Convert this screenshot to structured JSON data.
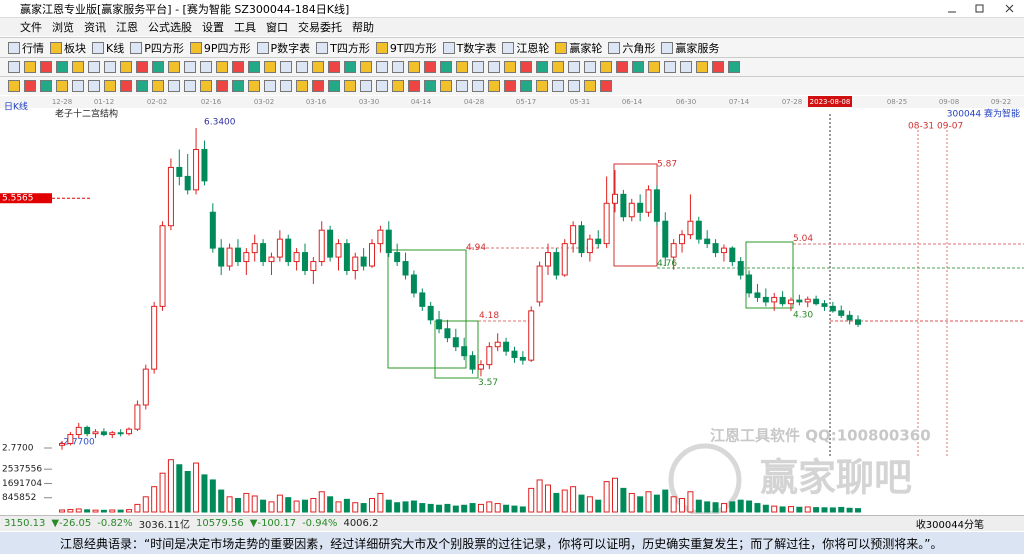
{
  "title_bar": {
    "title": "赢家江恩专业版[赢家服务平台] - [赛为智能 SZ300044-184日K线]"
  },
  "menu": [
    "文件",
    "浏览",
    "资讯",
    "江恩",
    "公式选股",
    "设置",
    "工具",
    "窗口",
    "交易委托",
    "帮助"
  ],
  "toolbar": [
    "行情",
    "板块",
    "K线",
    "P四方形",
    "9P四方形",
    "P数字表",
    "T四方形",
    "9T四方形",
    "T数字表",
    "江恩轮",
    "赢家轮",
    "六角形",
    "赢家服务"
  ],
  "chart": {
    "type": "candlestick",
    "period_label": "日K线",
    "indicator_title": "老子十二宫结构",
    "stock_label": "300044 赛为智能",
    "date_labels": [
      "12-28",
      "01-12",
      "02-02",
      "02-16",
      "03-02",
      "03-16",
      "03-30",
      "04-14",
      "04-28",
      "05-17",
      "05-31",
      "06-14",
      "06-30",
      "07-14",
      "07-28",
      "2023-08-08",
      "08-25",
      "09-08",
      "09-22"
    ],
    "future_dates": "08-31 09-07",
    "ylim": [
      2.77,
      6.34
    ],
    "yticks": [
      {
        "value": 5.5565,
        "label": "5.5565"
      },
      {
        "value": 2.77,
        "label": "2.7700"
      }
    ],
    "annotations": [
      {
        "value": 6.34,
        "label": "6.3400"
      },
      {
        "value": 5.87,
        "label": "5.87"
      },
      {
        "value": 4.94,
        "label": "4.94"
      },
      {
        "value": 5.04,
        "label": "5.04"
      },
      {
        "value": 4.76,
        "label": "4.76"
      },
      {
        "value": 4.18,
        "label": "4.18"
      },
      {
        "value": 4.3,
        "label": "4.30"
      },
      {
        "value": 3.57,
        "label": "3.57"
      },
      {
        "value": 2.77,
        "label": "-2.7700"
      }
    ],
    "candles": [
      [
        2.8,
        2.85,
        2.75,
        2.82
      ],
      [
        2.82,
        2.95,
        2.8,
        2.92
      ],
      [
        2.92,
        3.05,
        2.88,
        3.0
      ],
      [
        3.0,
        3.02,
        2.9,
        2.93
      ],
      [
        2.93,
        2.98,
        2.88,
        2.95
      ],
      [
        2.95,
        2.99,
        2.9,
        2.92
      ],
      [
        2.92,
        2.96,
        2.88,
        2.94
      ],
      [
        2.94,
        2.98,
        2.9,
        2.93
      ],
      [
        2.93,
        3.0,
        2.91,
        2.98
      ],
      [
        2.98,
        3.3,
        2.96,
        3.25
      ],
      [
        3.25,
        3.7,
        3.2,
        3.65
      ],
      [
        3.65,
        4.4,
        3.6,
        4.35
      ],
      [
        4.35,
        5.3,
        4.3,
        5.25
      ],
      [
        5.25,
        6.0,
        5.2,
        5.9
      ],
      [
        5.9,
        6.1,
        5.7,
        5.8
      ],
      [
        5.8,
        6.05,
        5.6,
        5.65
      ],
      [
        5.65,
        6.34,
        5.6,
        6.1
      ],
      [
        6.1,
        6.2,
        5.7,
        5.75
      ],
      [
        5.4,
        5.5,
        4.95,
        5.0
      ],
      [
        5.0,
        5.1,
        4.7,
        4.8
      ],
      [
        4.8,
        5.05,
        4.75,
        5.0
      ],
      [
        5.0,
        5.1,
        4.8,
        4.85
      ],
      [
        4.85,
        5.0,
        4.7,
        4.95
      ],
      [
        4.95,
        5.15,
        4.85,
        5.05
      ],
      [
        5.05,
        5.1,
        4.8,
        4.85
      ],
      [
        4.85,
        4.95,
        4.7,
        4.9
      ],
      [
        4.9,
        5.2,
        4.85,
        5.1
      ],
      [
        5.1,
        5.15,
        4.8,
        4.85
      ],
      [
        4.85,
        5.0,
        4.75,
        4.95
      ],
      [
        4.95,
        5.05,
        4.7,
        4.75
      ],
      [
        4.75,
        4.9,
        4.6,
        4.85
      ],
      [
        4.85,
        5.3,
        4.8,
        5.2
      ],
      [
        5.2,
        5.25,
        4.85,
        4.9
      ],
      [
        4.9,
        5.1,
        4.75,
        5.05
      ],
      [
        5.05,
        5.1,
        4.7,
        4.75
      ],
      [
        4.75,
        4.95,
        4.65,
        4.9
      ],
      [
        4.9,
        5.0,
        4.75,
        4.8
      ],
      [
        4.8,
        5.1,
        4.78,
        5.05
      ],
      [
        5.05,
        5.25,
        4.95,
        5.2
      ],
      [
        5.2,
        5.3,
        4.9,
        4.95
      ],
      [
        4.95,
        5.05,
        4.8,
        4.85
      ],
      [
        4.85,
        4.95,
        4.65,
        4.7
      ],
      [
        4.7,
        4.75,
        4.45,
        4.5
      ],
      [
        4.5,
        4.55,
        4.3,
        4.35
      ],
      [
        4.35,
        4.4,
        4.15,
        4.2
      ],
      [
        4.2,
        4.3,
        4.05,
        4.1
      ],
      [
        4.1,
        4.2,
        3.95,
        4.0
      ],
      [
        4.0,
        4.1,
        3.85,
        3.9
      ],
      [
        3.9,
        4.0,
        3.75,
        3.8
      ],
      [
        3.8,
        3.85,
        3.6,
        3.65
      ],
      [
        3.65,
        3.75,
        3.57,
        3.7
      ],
      [
        3.7,
        3.95,
        3.65,
        3.9
      ],
      [
        3.9,
        4.05,
        3.85,
        3.95
      ],
      [
        3.95,
        4.0,
        3.8,
        3.85
      ],
      [
        3.85,
        3.9,
        3.72,
        3.78
      ],
      [
        3.78,
        3.85,
        3.7,
        3.75
      ],
      [
        3.75,
        4.35,
        3.73,
        4.3
      ],
      [
        4.4,
        4.85,
        4.35,
        4.8
      ],
      [
        4.8,
        5.05,
        4.7,
        4.95
      ],
      [
        4.95,
        5.0,
        4.65,
        4.7
      ],
      [
        4.7,
        5.1,
        4.68,
        5.05
      ],
      [
        5.05,
        5.3,
        4.95,
        5.25
      ],
      [
        5.25,
        5.3,
        4.9,
        4.95
      ],
      [
        4.95,
        5.15,
        4.85,
        5.1
      ],
      [
        5.1,
        5.2,
        5.0,
        5.05
      ],
      [
        5.05,
        5.8,
        5.0,
        5.5
      ],
      [
        5.5,
        5.87,
        5.4,
        5.6
      ],
      [
        5.6,
        5.65,
        5.3,
        5.35
      ],
      [
        5.35,
        5.55,
        5.3,
        5.5
      ],
      [
        5.5,
        5.6,
        5.3,
        5.4
      ],
      [
        5.4,
        5.7,
        5.35,
        5.65
      ],
      [
        5.65,
        5.7,
        5.25,
        5.3
      ],
      [
        5.3,
        5.4,
        4.8,
        4.9
      ],
      [
        4.9,
        5.1,
        4.76,
        5.05
      ],
      [
        5.05,
        5.2,
        4.95,
        5.15
      ],
      [
        5.15,
        5.6,
        5.1,
        5.3
      ],
      [
        5.3,
        5.35,
        5.05,
        5.1
      ],
      [
        5.1,
        5.2,
        5.0,
        5.05
      ],
      [
        5.05,
        5.1,
        4.9,
        4.95
      ],
      [
        4.95,
        5.04,
        4.85,
        5.0
      ],
      [
        5.0,
        5.02,
        4.8,
        4.85
      ],
      [
        4.85,
        4.9,
        4.65,
        4.7
      ],
      [
        4.7,
        4.75,
        4.45,
        4.5
      ],
      [
        4.5,
        4.6,
        4.4,
        4.45
      ],
      [
        4.45,
        4.55,
        4.35,
        4.4
      ],
      [
        4.4,
        4.5,
        4.3,
        4.45
      ],
      [
        4.45,
        4.52,
        4.35,
        4.38
      ],
      [
        4.38,
        4.45,
        4.3,
        4.42
      ],
      [
        4.42,
        4.48,
        4.36,
        4.4
      ],
      [
        4.4,
        4.46,
        4.34,
        4.43
      ],
      [
        4.43,
        4.47,
        4.36,
        4.38
      ],
      [
        4.38,
        4.42,
        4.3,
        4.35
      ],
      [
        4.35,
        4.4,
        4.28,
        4.3
      ],
      [
        4.3,
        4.36,
        4.22,
        4.25
      ],
      [
        4.25,
        4.3,
        4.15,
        4.2
      ],
      [
        4.2,
        4.25,
        4.12,
        4.15
      ]
    ],
    "volumes": [
      120000,
      150000,
      180000,
      130000,
      110000,
      100000,
      120000,
      110000,
      140000,
      450000,
      900000,
      1500000,
      2300000,
      3100000,
      2800000,
      2400000,
      2900000,
      2200000,
      1900000,
      1300000,
      900000,
      800000,
      1100000,
      950000,
      700000,
      600000,
      1000000,
      850000,
      650000,
      700000,
      800000,
      1200000,
      900000,
      600000,
      750000,
      550000,
      500000,
      800000,
      1100000,
      700000,
      550000,
      600000,
      650000,
      500000,
      450000,
      400000,
      450000,
      350000,
      400000,
      500000,
      450000,
      600000,
      500000,
      400000,
      350000,
      300000,
      1400000,
      1900000,
      1600000,
      1100000,
      1300000,
      1500000,
      1000000,
      900000,
      700000,
      1800000,
      2000000,
      1400000,
      1100000,
      900000,
      1200000,
      1000000,
      1300000,
      900000,
      800000,
      1200000,
      700000,
      600000,
      550000,
      500000,
      600000,
      700000,
      650000,
      500000,
      400000,
      350000,
      300000,
      320000,
      280000,
      300000,
      260000,
      250000,
      240000,
      270000,
      220000,
      200000
    ],
    "vol_ylim": [
      0,
      3200000
    ],
    "vol_yticks": [
      2537556,
      1691704,
      845852
    ],
    "up_color": "#e02020",
    "down_color": "#008a5a"
  },
  "watermark": {
    "line1": "江恩工具软件  QQ:100800360",
    "line2": "赢家聊吧"
  },
  "status_bar": {
    "sh": [
      "3150.13",
      "▼-26.05",
      "-0.82%",
      "3036.11亿"
    ],
    "sz": [
      "10579.56",
      "▼-100.17",
      "-0.94%",
      "4006.2"
    ],
    "right": "收300044分笔"
  },
  "quote": "江恩经典语录：“时间是决定市场走势的重要因素，经过详细研究大市及个别股票的过往记录，你将可以证明，历史确实重复发生；而了解过往，你将可以预测将来。”。"
}
